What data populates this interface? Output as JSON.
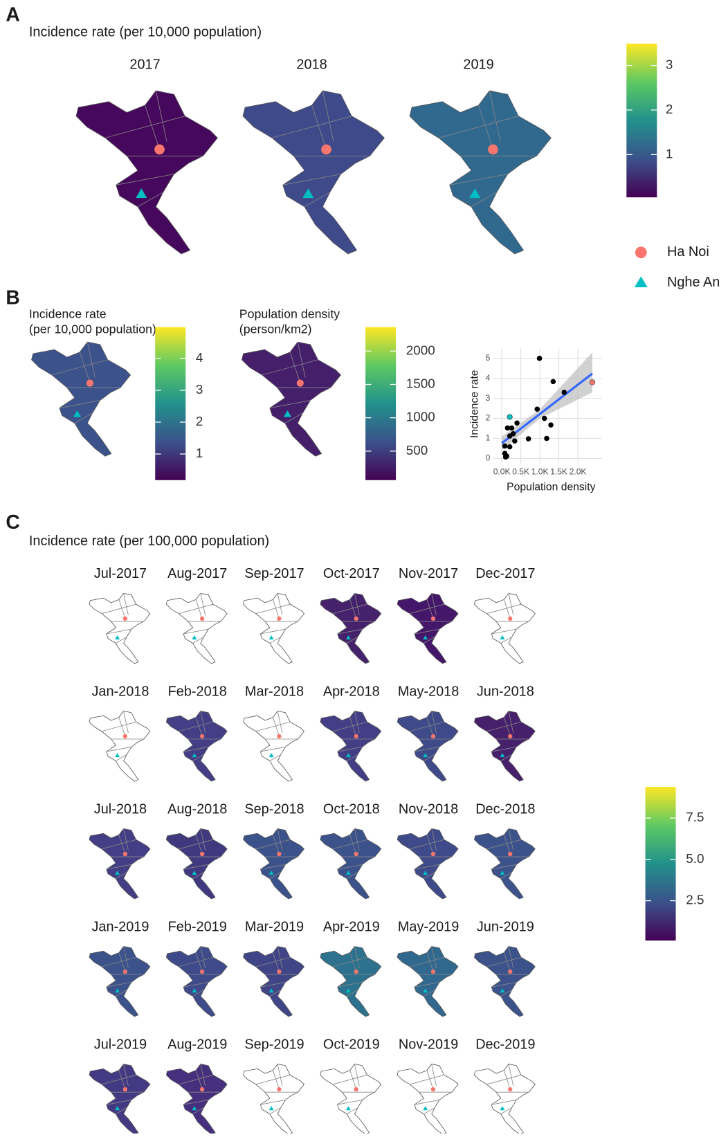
{
  "panel_a": {
    "label": "A",
    "title": "Incidence rate (per 10,000 population)",
    "maps": [
      {
        "title": "2017",
        "fill": "#46085c"
      },
      {
        "title": "2018",
        "fill": "#3e4a89"
      },
      {
        "title": "2019",
        "fill": "#31688e"
      }
    ],
    "colorbar": {
      "lim": [
        0.04,
        3.49
      ],
      "ticks": [
        1,
        2,
        3
      ]
    }
  },
  "legend": {
    "items": [
      {
        "name": "Ha Noi",
        "color": "#f8766d",
        "shape": "circle"
      },
      {
        "name": "Nghe An",
        "color": "#00bfc4",
        "shape": "triangle"
      }
    ]
  },
  "panel_b": {
    "label": "B",
    "maps": [
      {
        "title": [
          "Incidence rate",
          "(per 10,000 population)"
        ],
        "fill": "#3b528b",
        "colorbar": {
          "lim": [
            0.18,
            4.98
          ],
          "ticks": [
            1,
            2,
            3,
            4
          ]
        }
      },
      {
        "title": [
          "Population density",
          "(person/km2)"
        ],
        "fill": "#461f6b",
        "colorbar": {
          "lim": [
            65,
            2359
          ],
          "ticks": [
            500,
            1000,
            1500,
            2000
          ]
        }
      }
    ]
  },
  "chart_data": {
    "type": "scatter",
    "xlabel": "Population density",
    "ylabel": "Incidence rate",
    "xlim": [
      -229,
      2629
    ],
    "ylim": [
      -0.47,
      5.51
    ],
    "xticks": [
      {
        "value": 0,
        "label": "0.0K"
      },
      {
        "value": 500,
        "label": "0.5K"
      },
      {
        "value": 1000,
        "label": "1.0K"
      },
      {
        "value": 1500,
        "label": "1.5K"
      },
      {
        "value": 2000,
        "label": "2.0K"
      }
    ],
    "yticks": [
      0,
      1,
      2,
      3,
      4,
      5
    ],
    "grid": true,
    "series": [
      {
        "color": "#000000",
        "x": [
          990,
          1350,
          1640,
          930,
          1120,
          1290,
          1180,
          700,
          400,
          150,
          210,
          80,
          210,
          80,
          130,
          100,
          300,
          340,
          260
        ],
        "y": [
          5.0,
          3.84,
          3.3,
          2.46,
          2.0,
          1.67,
          1.0,
          0.98,
          1.77,
          1.52,
          1.12,
          0.62,
          0.58,
          0.25,
          0.11,
          0.07,
          1.23,
          0.87,
          1.52
        ]
      },
      {
        "color": "#f8766d",
        "x": [
          2380
        ],
        "y": [
          3.8
        ]
      },
      {
        "color": "#00bfc4",
        "x": [
          210
        ],
        "y": [
          2.07
        ]
      }
    ],
    "fit": {
      "color": "#3366ff",
      "band": "#bdbdbd",
      "x": [
        0,
        1000,
        2380
      ],
      "y": [
        0.76,
        2.22,
        4.24
      ],
      "lower": [
        0.4,
        2.0,
        3.3
      ],
      "upper": [
        1.1,
        2.45,
        5.3
      ]
    }
  },
  "panel_c": {
    "label": "C",
    "title": "Incidence rate (per 100,000 population)",
    "maps": [
      {
        "title": "Jul-2017",
        "fill": "#ffffff"
      },
      {
        "title": "Aug-2017",
        "fill": "#ffffff"
      },
      {
        "title": "Sep-2017",
        "fill": "#ffffff"
      },
      {
        "title": "Oct-2017",
        "fill": "#46226c"
      },
      {
        "title": "Nov-2017",
        "fill": "#45176a"
      },
      {
        "title": "Dec-2017",
        "fill": "#ffffff"
      },
      {
        "title": "Jan-2018",
        "fill": "#ffffff"
      },
      {
        "title": "Feb-2018",
        "fill": "#433e85"
      },
      {
        "title": "Mar-2018",
        "fill": "#ffffff"
      },
      {
        "title": "Apr-2018",
        "fill": "#433e85"
      },
      {
        "title": "May-2018",
        "fill": "#3e4a89"
      },
      {
        "title": "Jun-2018",
        "fill": "#46206b"
      },
      {
        "title": "Jul-2018",
        "fill": "#433e85"
      },
      {
        "title": "Aug-2018",
        "fill": "#41397f"
      },
      {
        "title": "Sep-2018",
        "fill": "#3b528b"
      },
      {
        "title": "Oct-2018",
        "fill": "#3b528b"
      },
      {
        "title": "Nov-2018",
        "fill": "#3e4a89"
      },
      {
        "title": "Dec-2018",
        "fill": "#3b528b"
      },
      {
        "title": "Jan-2019",
        "fill": "#3b528b"
      },
      {
        "title": "Feb-2019",
        "fill": "#3e4a89"
      },
      {
        "title": "Mar-2019",
        "fill": "#404588"
      },
      {
        "title": "Apr-2019",
        "fill": "#2c728e"
      },
      {
        "title": "May-2019",
        "fill": "#31688e"
      },
      {
        "title": "Jun-2019",
        "fill": "#3b528b"
      },
      {
        "title": "Jul-2019",
        "fill": "#443a83"
      },
      {
        "title": "Aug-2019",
        "fill": "#46307e"
      },
      {
        "title": "Sep-2019",
        "fill": "#ffffff"
      },
      {
        "title": "Oct-2019",
        "fill": "#ffffff"
      },
      {
        "title": "Nov-2019",
        "fill": "#ffffff"
      },
      {
        "title": "Dec-2019",
        "fill": "#ffffff"
      }
    ],
    "colorbar": {
      "lim": [
        0.09,
        9.39
      ],
      "ticks": [
        2.5,
        {
          "value": 5,
          "label": "5.0"
        },
        7.5
      ]
    }
  }
}
